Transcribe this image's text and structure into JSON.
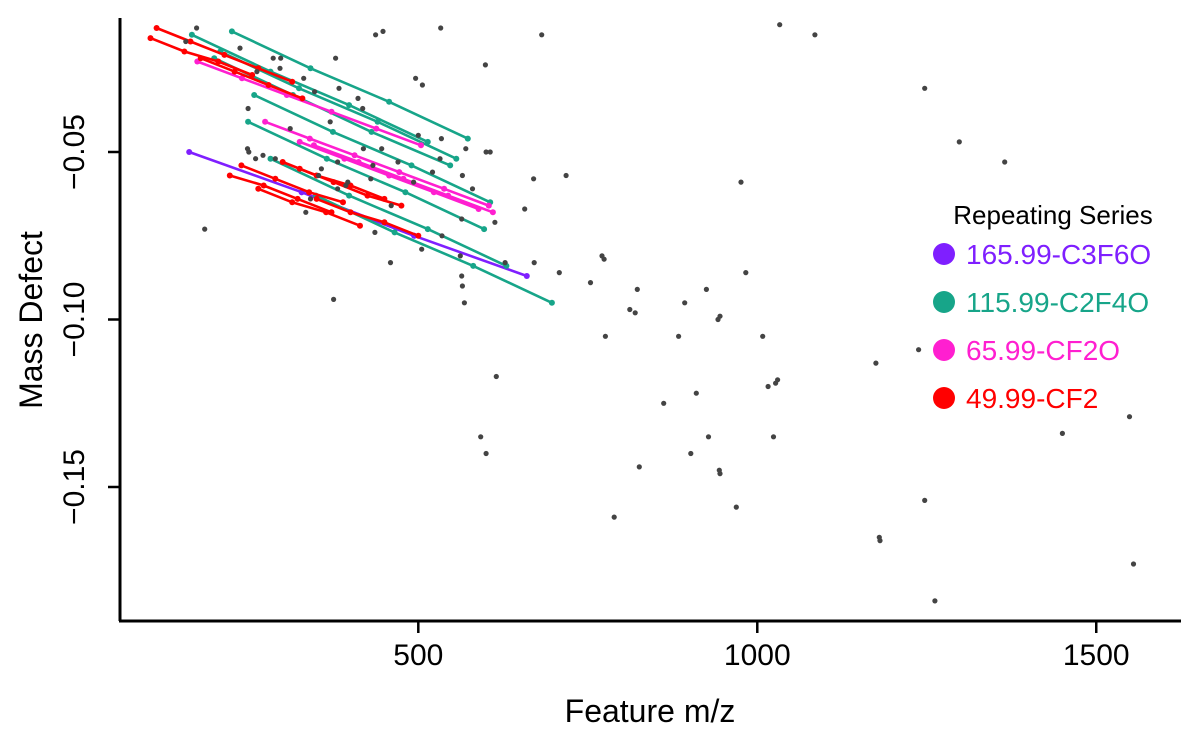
{
  "chart_data": {
    "type": "scatter",
    "xlabel": "Feature m/z",
    "ylabel": "Mass Defect",
    "xlim": [
      60,
      1625
    ],
    "ylim": [
      -0.19,
      -0.01
    ],
    "x_ticks": [
      500,
      1000,
      1500
    ],
    "x_tick_labels": [
      "500",
      "1000",
      "1500"
    ],
    "y_ticks": [
      -0.05,
      -0.1,
      -0.15
    ],
    "y_tick_labels": [
      "−0.05",
      "−0.10",
      "−0.15"
    ],
    "grid": false,
    "point_color": "#444444",
    "legend": {
      "title": "Repeating Series",
      "placement": "right",
      "entries": [
        {
          "label": "165.99-C3F6O",
          "color": "#7f1fff"
        },
        {
          "label": "115.99-C2F4O",
          "color": "#17a589"
        },
        {
          "label": "65.99-CF2O",
          "color": "#ff1fd0"
        },
        {
          "label": "49.99-CF2",
          "color": "#ff0000"
        }
      ]
    },
    "points": [
      [
        173,
        -0.013
      ],
      [
        157,
        -0.017
      ],
      [
        237,
        -0.019
      ],
      [
        286,
        -0.022
      ],
      [
        296,
        -0.025
      ],
      [
        262,
        -0.026
      ],
      [
        297,
        -0.022
      ],
      [
        378,
        -0.022
      ],
      [
        437,
        -0.015
      ],
      [
        448,
        -0.014
      ],
      [
        533,
        -0.013
      ],
      [
        682,
        -0.015
      ],
      [
        599,
        -0.024
      ],
      [
        496,
        -0.028
      ],
      [
        506,
        -0.03
      ],
      [
        383,
        -0.031
      ],
      [
        411,
        -0.034
      ],
      [
        418,
        -0.037
      ],
      [
        331,
        -0.028
      ],
      [
        347,
        -0.032
      ],
      [
        249,
        -0.037
      ],
      [
        311,
        -0.043
      ],
      [
        370,
        -0.041
      ],
      [
        419,
        -0.049
      ],
      [
        446,
        -0.049
      ],
      [
        500,
        -0.045
      ],
      [
        534,
        -0.046
      ],
      [
        570,
        -0.049
      ],
      [
        606,
        -0.05
      ],
      [
        532,
        -0.052
      ],
      [
        470,
        -0.053
      ],
      [
        381,
        -0.053
      ],
      [
        289,
        -0.052
      ],
      [
        248,
        -0.049
      ],
      [
        250,
        -0.05
      ],
      [
        260,
        -0.052
      ],
      [
        271,
        -0.051
      ],
      [
        353,
        -0.057
      ],
      [
        357,
        -0.055
      ],
      [
        433,
        -0.054
      ],
      [
        430,
        -0.058
      ],
      [
        493,
        -0.059
      ],
      [
        521,
        -0.056
      ],
      [
        565,
        -0.057
      ],
      [
        580,
        -0.061
      ],
      [
        396,
        -0.059
      ],
      [
        393,
        -0.06
      ],
      [
        381,
        -0.061
      ],
      [
        341,
        -0.064
      ],
      [
        334,
        -0.068
      ],
      [
        460,
        -0.066
      ],
      [
        436,
        -0.074
      ],
      [
        459,
        -0.083
      ],
      [
        505,
        -0.079
      ],
      [
        535,
        -0.075
      ],
      [
        613,
        -0.071
      ],
      [
        657,
        -0.067
      ],
      [
        670,
        -0.058
      ],
      [
        718,
        -0.057
      ],
      [
        564,
        -0.07
      ],
      [
        562,
        -0.081
      ],
      [
        564,
        -0.087
      ],
      [
        565,
        -0.09
      ],
      [
        568,
        -0.095
      ],
      [
        628,
        -0.083
      ],
      [
        671,
        -0.083
      ],
      [
        708,
        -0.086
      ],
      [
        754,
        -0.089
      ],
      [
        771,
        -0.081
      ],
      [
        774,
        -0.082
      ],
      [
        823,
        -0.091
      ],
      [
        812,
        -0.097
      ],
      [
        820,
        -0.098
      ],
      [
        776,
        -0.105
      ],
      [
        884,
        -0.105
      ],
      [
        893,
        -0.095
      ],
      [
        925,
        -0.091
      ],
      [
        942,
        -0.1
      ],
      [
        945,
        -0.099
      ],
      [
        983,
        -0.086
      ],
      [
        976,
        -0.059
      ],
      [
        1008,
        -0.105
      ],
      [
        1027,
        -0.119
      ],
      [
        1016,
        -0.12
      ],
      [
        910,
        -0.122
      ],
      [
        862,
        -0.125
      ],
      [
        615,
        -0.117
      ],
      [
        592,
        -0.135
      ],
      [
        600,
        -0.14
      ],
      [
        826,
        -0.144
      ],
      [
        902,
        -0.14
      ],
      [
        928,
        -0.135
      ],
      [
        944,
        -0.145
      ],
      [
        945,
        -0.146
      ],
      [
        1024,
        -0.135
      ],
      [
        969,
        -0.156
      ],
      [
        789,
        -0.159
      ],
      [
        1033,
        -0.012
      ],
      [
        1085,
        -0.015
      ],
      [
        1247,
        -0.031
      ],
      [
        1298,
        -0.047
      ],
      [
        1365,
        -0.053
      ],
      [
        1238,
        -0.109
      ],
      [
        1175,
        -0.113
      ],
      [
        1030,
        -0.118
      ],
      [
        1450,
        -0.134
      ],
      [
        1549,
        -0.129
      ],
      [
        1247,
        -0.154
      ],
      [
        1180,
        -0.165
      ],
      [
        1181,
        -0.166
      ],
      [
        1555,
        -0.173
      ],
      [
        1262,
        -0.184
      ],
      [
        185,
        -0.073
      ],
      [
        375,
        -0.094
      ],
      [
        600,
        -0.05
      ]
    ],
    "series": [
      {
        "color": "#7f1fff",
        "lines": [
          [
            [
              162,
              -0.05
            ],
            [
              328,
              -0.062
            ],
            [
              494,
              -0.075
            ],
            [
              660,
              -0.087
            ]
          ],
          [
            [
              328,
              -0.062
            ],
            [
              494,
              -0.075
            ]
          ]
        ]
      },
      {
        "color": "#17a589",
        "lines": [
          [
            [
              225,
              -0.014
            ],
            [
              341,
              -0.025
            ],
            [
              457,
              -0.035
            ],
            [
              573,
              -0.046
            ]
          ],
          [
            [
              166,
              -0.015
            ],
            [
              282,
              -0.026
            ],
            [
              398,
              -0.036
            ],
            [
              514,
              -0.047
            ]
          ],
          [
            [
              208,
              -0.02
            ],
            [
              324,
              -0.031
            ],
            [
              440,
              -0.041
            ],
            [
              556,
              -0.052
            ]
          ],
          [
            [
              199,
              -0.022
            ],
            [
              315,
              -0.033
            ],
            [
              431,
              -0.044
            ],
            [
              547,
              -0.054
            ]
          ],
          [
            [
              258,
              -0.033
            ],
            [
              374,
              -0.044
            ],
            [
              490,
              -0.054
            ],
            [
              606,
              -0.065
            ]
          ],
          [
            [
              249,
              -0.041
            ],
            [
              365,
              -0.052
            ],
            [
              481,
              -0.062
            ],
            [
              597,
              -0.073
            ]
          ],
          [
            [
              282,
              -0.052
            ],
            [
              398,
              -0.063
            ],
            [
              514,
              -0.073
            ],
            [
              630,
              -0.084
            ]
          ],
          [
            [
              349,
              -0.063
            ],
            [
              465,
              -0.074
            ],
            [
              581,
              -0.084
            ],
            [
              697,
              -0.095
            ]
          ]
        ]
      },
      {
        "color": "#ff1fd0",
        "lines": [
          [
            [
              174,
              -0.023
            ],
            [
              240,
              -0.028
            ],
            [
              306,
              -0.033
            ],
            [
              372,
              -0.038
            ],
            [
              438,
              -0.043
            ],
            [
              504,
              -0.048
            ]
          ],
          [
            [
              274,
              -0.041
            ],
            [
              340,
              -0.046
            ],
            [
              406,
              -0.051
            ],
            [
              472,
              -0.056
            ],
            [
              538,
              -0.061
            ],
            [
              604,
              -0.066
            ]
          ],
          [
            [
              325,
              -0.047
            ],
            [
              391,
              -0.052
            ],
            [
              457,
              -0.057
            ],
            [
              523,
              -0.062
            ],
            [
              589,
              -0.067
            ]
          ],
          [
            [
              346,
              -0.048
            ],
            [
              412,
              -0.053
            ],
            [
              478,
              -0.058
            ],
            [
              544,
              -0.063
            ],
            [
              610,
              -0.068
            ]
          ]
        ]
      },
      {
        "color": "#ff0000",
        "lines": [
          [
            [
              105,
              -0.016
            ],
            [
              155,
              -0.02
            ],
            [
              205,
              -0.023
            ],
            [
              255,
              -0.027
            ]
          ],
          [
            [
              114,
              -0.013
            ],
            [
              164,
              -0.017
            ],
            [
              214,
              -0.021
            ],
            [
              264,
              -0.025
            ],
            [
              314,
              -0.029
            ]
          ],
          [
            [
              179,
              -0.022
            ],
            [
              229,
              -0.026
            ],
            [
              279,
              -0.03
            ],
            [
              329,
              -0.034
            ]
          ],
          [
            [
              222,
              -0.057
            ],
            [
              272,
              -0.06
            ],
            [
              322,
              -0.064
            ],
            [
              372,
              -0.068
            ]
          ],
          [
            [
              239,
              -0.054
            ],
            [
              289,
              -0.058
            ],
            [
              339,
              -0.062
            ],
            [
              389,
              -0.065
            ]
          ],
          [
            [
              264,
              -0.061
            ],
            [
              314,
              -0.065
            ],
            [
              364,
              -0.068
            ],
            [
              414,
              -0.072
            ]
          ],
          [
            [
              300,
              -0.053
            ],
            [
              350,
              -0.057
            ],
            [
              400,
              -0.06
            ],
            [
              450,
              -0.064
            ]
          ],
          [
            [
              325,
              -0.055
            ],
            [
              375,
              -0.059
            ],
            [
              425,
              -0.063
            ],
            [
              475,
              -0.066
            ]
          ],
          [
            [
              350,
              -0.064
            ],
            [
              400,
              -0.068
            ],
            [
              450,
              -0.071
            ],
            [
              500,
              -0.075
            ]
          ]
        ]
      }
    ]
  }
}
